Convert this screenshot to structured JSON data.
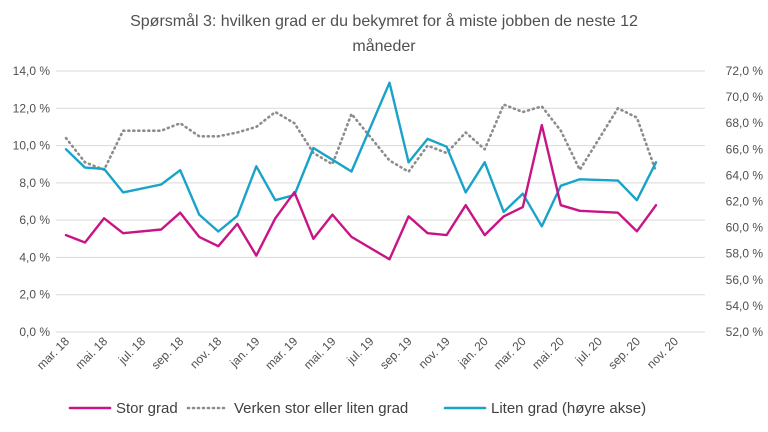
{
  "chart_data": {
    "type": "line",
    "title_lines": [
      "Spørsmål 3: hvilken  grad er du bekymret  for å miste jobben de neste 12",
      "måneder"
    ],
    "x_tick_labels": [
      "mar. 18",
      "mai. 18",
      "jul. 18",
      "sep. 18",
      "nov. 18",
      "jan. 19",
      "mar. 19",
      "mai. 19",
      "jul. 19",
      "sep. 19",
      "nov. 19",
      "jan. 20",
      "mar. 20",
      "mai. 20",
      "jul. 20",
      "sep. 20",
      "nov. 20"
    ],
    "left_axis": {
      "min": 0,
      "max": 14,
      "step": 2,
      "labels": [
        "0,0 %",
        "2,0 %",
        "4,0 %",
        "6,0 %",
        "8,0 %",
        "10,0 %",
        "12,0 %",
        "14,0 %"
      ]
    },
    "right_axis": {
      "min": 52,
      "max": 72,
      "step": 2,
      "labels": [
        "52,0 %",
        "54,0 %",
        "56,0 %",
        "58,0 %",
        "60,0 %",
        "62,0 %",
        "64,0 %",
        "66,0 %",
        "68,0 %",
        "70,0 %",
        "72,0 %"
      ]
    },
    "x_range": [
      "2018-03",
      "2020-11"
    ],
    "gridlines": true,
    "legend_position": "bottom",
    "series": [
      {
        "name": "Stor grad",
        "color": "#c71585",
        "axis": "left",
        "dash": "solid",
        "points": [
          {
            "x": "2018-03",
            "y": 5.2
          },
          {
            "x": "2018-04",
            "y": 4.8
          },
          {
            "x": "2018-05",
            "y": 6.1
          },
          {
            "x": "2018-06",
            "y": 5.3
          },
          {
            "x": "2018-08",
            "y": 5.5
          },
          {
            "x": "2018-09",
            "y": 6.4
          },
          {
            "x": "2018-10",
            "y": 5.1
          },
          {
            "x": "2018-11",
            "y": 4.6
          },
          {
            "x": "2018-12",
            "y": 5.8
          },
          {
            "x": "2019-01",
            "y": 4.1
          },
          {
            "x": "2019-02",
            "y": 6.1
          },
          {
            "x": "2019-03",
            "y": 7.5
          },
          {
            "x": "2019-04",
            "y": 5.0
          },
          {
            "x": "2019-05",
            "y": 6.3
          },
          {
            "x": "2019-06",
            "y": 5.1
          },
          {
            "x": "2019-08",
            "y": 3.9
          },
          {
            "x": "2019-09",
            "y": 6.2
          },
          {
            "x": "2019-10",
            "y": 5.3
          },
          {
            "x": "2019-11",
            "y": 5.2
          },
          {
            "x": "2019-12",
            "y": 6.8
          },
          {
            "x": "2020-01",
            "y": 5.2
          },
          {
            "x": "2020-02",
            "y": 6.2
          },
          {
            "x": "2020-03",
            "y": 6.7
          },
          {
            "x": "2020-04",
            "y": 11.1
          },
          {
            "x": "2020-05",
            "y": 6.8
          },
          {
            "x": "2020-06",
            "y": 6.5
          },
          {
            "x": "2020-08",
            "y": 6.4
          },
          {
            "x": "2020-09",
            "y": 5.4
          },
          {
            "x": "2020-10",
            "y": 6.8
          }
        ]
      },
      {
        "name": "Verken stor eller liten grad",
        "color": "#8c8c8c",
        "axis": "left",
        "dash": "dotted",
        "points": [
          {
            "x": "2018-03",
            "y": 10.4
          },
          {
            "x": "2018-04",
            "y": 9.1
          },
          {
            "x": "2018-05",
            "y": 8.7
          },
          {
            "x": "2018-06",
            "y": 10.8
          },
          {
            "x": "2018-08",
            "y": 10.8
          },
          {
            "x": "2018-09",
            "y": 11.2
          },
          {
            "x": "2018-10",
            "y": 10.5
          },
          {
            "x": "2018-11",
            "y": 10.5
          },
          {
            "x": "2018-12",
            "y": 10.7
          },
          {
            "x": "2019-01",
            "y": 11.0
          },
          {
            "x": "2019-02",
            "y": 11.8
          },
          {
            "x": "2019-03",
            "y": 11.2
          },
          {
            "x": "2019-04",
            "y": 9.6
          },
          {
            "x": "2019-05",
            "y": 9.0
          },
          {
            "x": "2019-06",
            "y": 11.7
          },
          {
            "x": "2019-08",
            "y": 9.2
          },
          {
            "x": "2019-09",
            "y": 8.6
          },
          {
            "x": "2019-10",
            "y": 10.0
          },
          {
            "x": "2019-11",
            "y": 9.6
          },
          {
            "x": "2019-12",
            "y": 10.7
          },
          {
            "x": "2020-01",
            "y": 9.8
          },
          {
            "x": "2020-02",
            "y": 12.2
          },
          {
            "x": "2020-03",
            "y": 11.8
          },
          {
            "x": "2020-04",
            "y": 12.1
          },
          {
            "x": "2020-05",
            "y": 10.8
          },
          {
            "x": "2020-06",
            "y": 8.7
          },
          {
            "x": "2020-08",
            "y": 12.0
          },
          {
            "x": "2020-09",
            "y": 11.5
          },
          {
            "x": "2020-10",
            "y": 8.6
          }
        ]
      },
      {
        "name": "Liten grad (høyre akse)",
        "color": "#1aa3c8",
        "axis": "right",
        "dash": "solid",
        "points": [
          {
            "x": "2018-03",
            "y": 66.0
          },
          {
            "x": "2018-04",
            "y": 64.6
          },
          {
            "x": "2018-05",
            "y": 64.5
          },
          {
            "x": "2018-06",
            "y": 62.7
          },
          {
            "x": "2018-08",
            "y": 63.3
          },
          {
            "x": "2018-09",
            "y": 64.4
          },
          {
            "x": "2018-10",
            "y": 61.0
          },
          {
            "x": "2018-11",
            "y": 59.7
          },
          {
            "x": "2018-12",
            "y": 60.9
          },
          {
            "x": "2019-01",
            "y": 64.7
          },
          {
            "x": "2019-02",
            "y": 62.1
          },
          {
            "x": "2019-03",
            "y": 62.5
          },
          {
            "x": "2019-04",
            "y": 66.1
          },
          {
            "x": "2019-05",
            "y": 65.2
          },
          {
            "x": "2019-06",
            "y": 64.3
          },
          {
            "x": "2019-08",
            "y": 71.1
          },
          {
            "x": "2019-09",
            "y": 65.0
          },
          {
            "x": "2019-10",
            "y": 66.8
          },
          {
            "x": "2019-11",
            "y": 66.2
          },
          {
            "x": "2019-12",
            "y": 62.7
          },
          {
            "x": "2020-01",
            "y": 65.0
          },
          {
            "x": "2020-02",
            "y": 61.2
          },
          {
            "x": "2020-03",
            "y": 62.6
          },
          {
            "x": "2020-04",
            "y": 60.1
          },
          {
            "x": "2020-05",
            "y": 63.2
          },
          {
            "x": "2020-06",
            "y": 63.7
          },
          {
            "x": "2020-08",
            "y": 63.6
          },
          {
            "x": "2020-09",
            "y": 62.1
          },
          {
            "x": "2020-10",
            "y": 65.0
          }
        ]
      }
    ]
  }
}
